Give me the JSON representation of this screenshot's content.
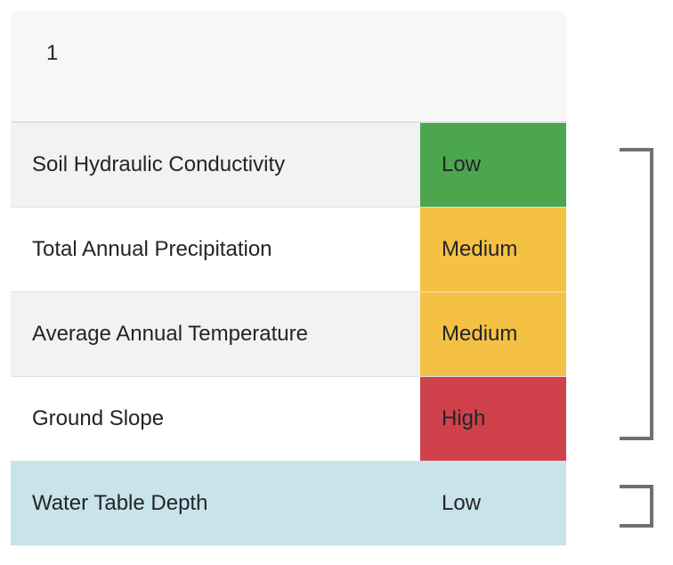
{
  "header": {
    "cell": "1"
  },
  "rows": [
    {
      "label": "Soil Hydraulic Conductivity",
      "value": "Low",
      "color": "#4ba64d",
      "text_color": "#212529"
    },
    {
      "label": "Total Annual Precipitation",
      "value": "Medium",
      "color": "#f5c144",
      "text_color": "#212529"
    },
    {
      "label": "Average Annual Temperature",
      "value": "Medium",
      "color": "#f5c144",
      "text_color": "#212529"
    },
    {
      "label": "Ground Slope",
      "value": "High",
      "color": "#cf414b",
      "text_color": "#212529"
    },
    {
      "label": "Water Table Depth",
      "value": "Low",
      "color": "#c8e3ea",
      "text_color": "#212529"
    }
  ]
}
